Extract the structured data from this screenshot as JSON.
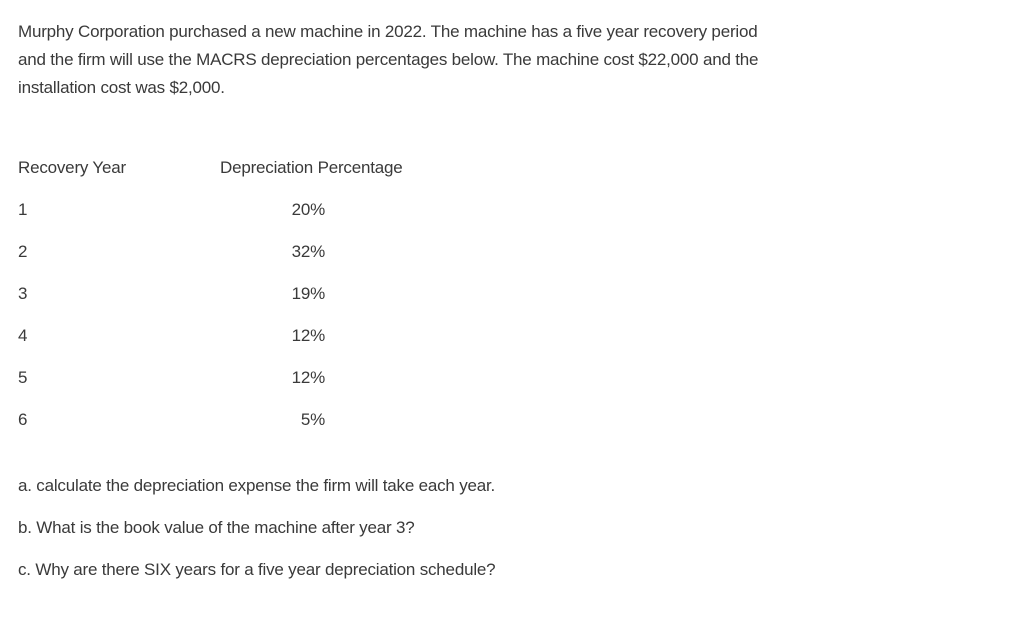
{
  "colors": {
    "text": "#3a3a3a",
    "background": "#ffffff"
  },
  "intro": {
    "line1": "Murphy Corporation purchased a new machine in 2022. The machine has a five year recovery period",
    "line2": "and the firm will use the MACRS depreciation percentages below. The machine cost $22,000 and the",
    "line3": "installation cost was $2,000."
  },
  "table": {
    "headers": {
      "recovery_year": "Recovery Year",
      "depreciation_percentage": "Depreciation Percentage"
    },
    "rows": [
      {
        "year": "1",
        "pct": "20%"
      },
      {
        "year": "2",
        "pct": "32%"
      },
      {
        "year": "3",
        "pct": "19%"
      },
      {
        "year": "4",
        "pct": "12%"
      },
      {
        "year": "5",
        "pct": "12%"
      },
      {
        "year": "6",
        "pct": "5%"
      }
    ]
  },
  "questions": {
    "a": "a. calculate the depreciation expense the firm will take each year.",
    "b": "b. What is the book value of the machine after year 3?",
    "c": "c. Why are there SIX years for a five year depreciation schedule?"
  }
}
